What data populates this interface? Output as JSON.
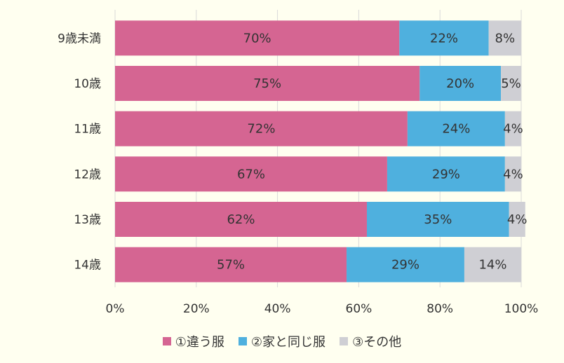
{
  "chart_data": {
    "type": "bar",
    "orientation": "horizontal",
    "stacked": "percent",
    "categories": [
      "9歳未満",
      "10歳",
      "11歳",
      "12歳",
      "13歳",
      "14歳"
    ],
    "series": [
      {
        "name": "①違う服",
        "color": "#d56592",
        "values": [
          70,
          75,
          72,
          67,
          62,
          57
        ],
        "labels": [
          "70%",
          "75%",
          "72%",
          "67%",
          "62%",
          "57%"
        ]
      },
      {
        "name": "②家と同じ服",
        "color": "#4fb0de",
        "values": [
          22,
          20,
          24,
          29,
          35,
          29
        ],
        "labels": [
          "22%",
          "20%",
          "24%",
          "29%",
          "35%",
          "29%"
        ]
      },
      {
        "name": "③その他",
        "color": "#cfcfd4",
        "values": [
          8,
          5,
          4,
          4,
          4,
          14
        ],
        "labels": [
          "8%",
          "5%",
          "4%",
          "4%",
          "4%",
          "14%"
        ]
      }
    ],
    "xlim": [
      0,
      100
    ],
    "xticks": [
      "0%",
      "20%",
      "40%",
      "60%",
      "80%",
      "100%"
    ],
    "grid": true,
    "legend_position": "bottom"
  }
}
